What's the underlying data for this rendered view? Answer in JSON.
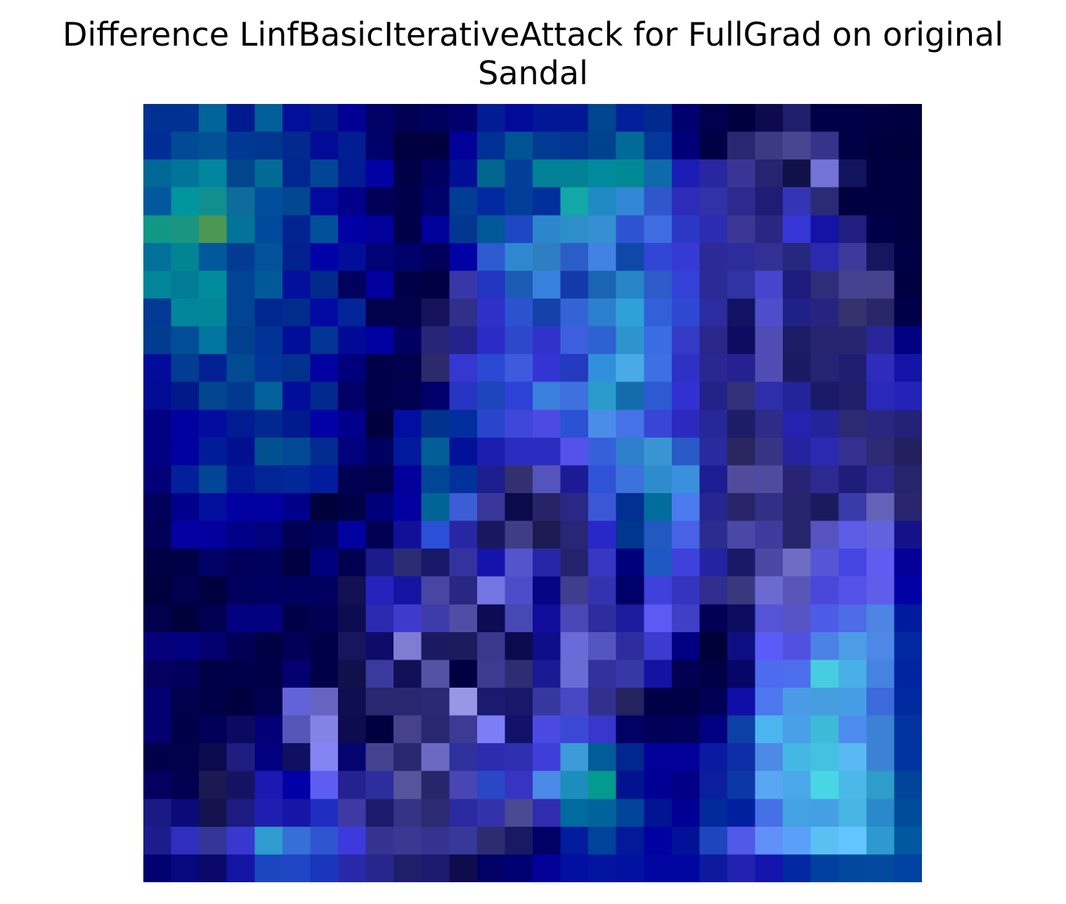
{
  "chart_data": {
    "type": "heatmap",
    "title_lines": [
      "Difference LinfBasicIterativeAttack for FullGrad on original",
      "Sandal"
    ],
    "axis": "off",
    "grid": false,
    "colorbar": false,
    "rows": 28,
    "cols": 28,
    "cells": [
      [
        "#013193",
        "#013193",
        "#01659B",
        "#011A90",
        "#015F9A",
        "#020F98",
        "#01198B",
        "#020094",
        "#000066",
        "#000054",
        "#00005D",
        "#00006D",
        "#011C95",
        "#010B9A",
        "#011896",
        "#011896",
        "#00458F",
        "#01209A",
        "#012A8E",
        "#000071",
        "#00004E",
        "#00003F",
        "#0D0A4E",
        "#1E1E6C",
        "#000047",
        "#000046",
        "#000043",
        "#000040"
      ],
      [
        "#012E96",
        "#014A96",
        "#015294",
        "#013894",
        "#013690",
        "#01298E",
        "#020B96",
        "#011D92",
        "#000069",
        "#00003E",
        "#000041",
        "#010199",
        "#013094",
        "#015493",
        "#013A92",
        "#013592",
        "#01428E",
        "#016B98",
        "#01389A",
        "#010079",
        "#000045",
        "#292770",
        "#3B3A82",
        "#484593",
        "#36348A",
        "#000044",
        "#00003F",
        "#00003D"
      ],
      [
        "#016796",
        "#01749A",
        "#02859E",
        "#01468D",
        "#016B95",
        "#012690",
        "#014696",
        "#011B93",
        "#0201A4",
        "#000049",
        "#000060",
        "#010F95",
        "#016690",
        "#013F9A",
        "#018195",
        "#018195",
        "#018A9D",
        "#018895",
        "#0F6AAA",
        "#1B1CB4",
        "#2827A1",
        "#3A3594",
        "#262471",
        "#111149",
        "#7273D6",
        "#12135D",
        "#000040",
        "#000040"
      ],
      [
        "#01589C",
        "#01959F",
        "#118F8E",
        "#0D6C9A",
        "#014E9C",
        "#014890",
        "#02099E",
        "#01008A",
        "#000059",
        "#00004A",
        "#000069",
        "#013D95",
        "#0129A0",
        "#013E9A",
        "#012F9C",
        "#13A7A8",
        "#1F8AC4",
        "#3288D5",
        "#3056CC",
        "#2C2CB8",
        "#3131A8",
        "#2C2A8E",
        "#1D1D76",
        "#3435B6",
        "#2B2A77",
        "#000040",
        "#000040",
        "#000040"
      ],
      [
        "#119885",
        "#1A9581",
        "#4A9852",
        "#037399",
        "#01499D",
        "#012490",
        "#01509A",
        "#0100A4",
        "#01009A",
        "#000049",
        "#00009A",
        "#013691",
        "#015898",
        "#1E47C3",
        "#2C86CD",
        "#2D8EC8",
        "#3590D2",
        "#2E53D2",
        "#3F6CE1",
        "#2B38C4",
        "#2C2CB0",
        "#3C3796",
        "#292782",
        "#3636D6",
        "#1413A6",
        "#201E7E",
        "#000048",
        "#000041"
      ],
      [
        "#01709B",
        "#018494",
        "#01599C",
        "#013C92",
        "#01529A",
        "#01218F",
        "#0101A8",
        "#010E99",
        "#000276",
        "#00006D",
        "#00005B",
        "#0201A4",
        "#2B5BCF",
        "#2F88CF",
        "#2E7EC2",
        "#2B5DC9",
        "#4282E0",
        "#0F48A8",
        "#3146D4",
        "#3639D4",
        "#2B2A96",
        "#2D2C9C",
        "#323193",
        "#26277F",
        "#2B2AAF",
        "#3C3B9B",
        "#16155F",
        "#000044"
      ],
      [
        "#018598",
        "#017C97",
        "#018C9D",
        "#014496",
        "#01599A",
        "#020F9A",
        "#012A8C",
        "#00005D",
        "#02009C",
        "#000049",
        "#000042",
        "#3837A8",
        "#2235C0",
        "#1D5BB6",
        "#3882DE",
        "#1439AB",
        "#1A64B4",
        "#2785C8",
        "#2D5BC9",
        "#3341D7",
        "#2C2A96",
        "#3133A4",
        "#4645CC",
        "#1D1C7E",
        "#2E2D79",
        "#45428F",
        "#45428F",
        "#000041"
      ],
      [
        "#013994",
        "#01859B",
        "#018798",
        "#014494",
        "#01268E",
        "#012B8C",
        "#0109A2",
        "#012598",
        "#00004D",
        "#00004B",
        "#15115A",
        "#302F8A",
        "#2E30C7",
        "#2B53D0",
        "#1542AA",
        "#3363D5",
        "#2C7ECF",
        "#30A0D9",
        "#3260D9",
        "#2E48D3",
        "#2C2B9F",
        "#121263",
        "#4F4DC9",
        "#202089",
        "#26247F",
        "#35326D",
        "#292769",
        "#000048"
      ],
      [
        "#013C91",
        "#014D98",
        "#01759E",
        "#01408F",
        "#013396",
        "#010E98",
        "#013493",
        "#010A97",
        "#0100A0",
        "#000063",
        "#272578",
        "#23238B",
        "#2B2BC7",
        "#2E48CC",
        "#3032CB",
        "#3D5FDE",
        "#2E61D2",
        "#2E94CE",
        "#3A6CE3",
        "#3439C6",
        "#292889",
        "#0D0C62",
        "#4F4DB4",
        "#1C1C66",
        "#272572",
        "#272570",
        "#28269A",
        "#010083"
      ],
      [
        "#010D9A",
        "#013D92",
        "#012094",
        "#014B93",
        "#013398",
        "#01308D",
        "#0100A0",
        "#00007B",
        "#00004A",
        "#00004C",
        "#2D2A6C",
        "#3636D1",
        "#2B49D4",
        "#3E5BDE",
        "#3434D2",
        "#243ABF",
        "#3090DB",
        "#4AAAE8",
        "#3C70E3",
        "#2F30C6",
        "#292791",
        "#232290",
        "#4F4DB4",
        "#1A1A62",
        "#242472",
        "#1E1D72",
        "#2F2CBA",
        "#1314A5"
      ],
      [
        "#020C93",
        "#01198A",
        "#01468E",
        "#013991",
        "#016198",
        "#020D9A",
        "#01298E",
        "#000066",
        "#00004A",
        "#000052",
        "#00006A",
        "#2834C2",
        "#1E45BC",
        "#2D42D6",
        "#3A7FDC",
        "#3F70E0",
        "#2B9BCC",
        "#146CAA",
        "#2D5AD2",
        "#3230D1",
        "#232288",
        "#323079",
        "#2E2EAB",
        "#24239A",
        "#1B1A68",
        "#211F6B",
        "#2A28BA",
        "#2323B8"
      ],
      [
        "#010083",
        "#0101A0",
        "#020D9E",
        "#011B91",
        "#01288F",
        "#011A8C",
        "#0101A5",
        "#01008B",
        "#00003D",
        "#010EA1",
        "#01328C",
        "#012E9F",
        "#2A45CA",
        "#3E47D9",
        "#4C4AE4",
        "#2A52D2",
        "#4B8CE9",
        "#4672E8",
        "#3945D6",
        "#2B29BE",
        "#272798",
        "#1D1C67",
        "#2D2C86",
        "#2622B0",
        "#24239A",
        "#2B2A73",
        "#292780",
        "#232278"
      ],
      [
        "#010082",
        "#0101A0",
        "#011C97",
        "#010F91",
        "#015190",
        "#014895",
        "#012B8F",
        "#01007D",
        "#000060",
        "#01199C",
        "#015E96",
        "#01119A",
        "#1B1DAF",
        "#2B2DC0",
        "#2B2DC0",
        "#5352EB",
        "#3660DA",
        "#2E7FCB",
        "#3895D1",
        "#2959C7",
        "#2A2A9E",
        "#29255F",
        "#373483",
        "#26239E",
        "#2A29B0",
        "#352F8F",
        "#2D2A73",
        "#22205E"
      ],
      [
        "#010079",
        "#01209A",
        "#014595",
        "#011896",
        "#012694",
        "#012898",
        "#011C9C",
        "#000052",
        "#00004C",
        "#01009B",
        "#014696",
        "#01319A",
        "#1E1E8E",
        "#33306F",
        "#5553BC",
        "#1C1B95",
        "#2F53D4",
        "#3D71DB",
        "#2F8CCC",
        "#3B90DD",
        "#1C1C93",
        "#4F4C9B",
        "#4F4B9E",
        "#262473",
        "#2C2A91",
        "#1E1D7A",
        "#2C2A8E",
        "#25246C"
      ],
      [
        "#00005C",
        "#00008C",
        "#020E9E",
        "#0100A0",
        "#0100A0",
        "#01008A",
        "#00003B",
        "#000046",
        "#00007A",
        "#01009F",
        "#016396",
        "#3C5DD6",
        "#383699",
        "#0B0A4A",
        "#262466",
        "#2A2885",
        "#3A58D6",
        "#012F92",
        "#016D9C",
        "#4B7BEF",
        "#272691",
        "#27246A",
        "#313087",
        "#27246C",
        "#1C1A5F",
        "#3A3AAA",
        "#6462B6",
        "#29266D"
      ],
      [
        "#000057",
        "#03019F",
        "#03009E",
        "#010089",
        "#01007D",
        "#000053",
        "#00005F",
        "#0101A0",
        "#000053",
        "#12109A",
        "#2B4FD6",
        "#2827A3",
        "#19185F",
        "#3E3D85",
        "#1C1A50",
        "#272677",
        "#2828C8",
        "#01368E",
        "#2159C1",
        "#4762E6",
        "#2C2B90",
        "#4A48A6",
        "#3E3B9C",
        "#26256B",
        "#5653C0",
        "#5C5CE6",
        "#6362DC",
        "#151289"
      ],
      [
        "#000044",
        "#000049",
        "#000067",
        "#00005B",
        "#00005D",
        "#000042",
        "#00007E",
        "#000053",
        "#1A1A8A",
        "#2B2C73",
        "#1A1969",
        "#34329E",
        "#1413AB",
        "#5454CC",
        "#2726A7",
        "#25236E",
        "#3737C4",
        "#01007C",
        "#1D58C3",
        "#3F41DC",
        "#2323A3",
        "#1A1968",
        "#4948A3",
        "#6E6CC3",
        "#5555D5",
        "#4545E2",
        "#5F5CEF",
        "#030198"
      ],
      [
        "#00003F",
        "#00004F",
        "#000040",
        "#00005E",
        "#000061",
        "#00005F",
        "#00005E",
        "#111052",
        "#2424BD",
        "#1414A3",
        "#4746A3",
        "#282781",
        "#7575E1",
        "#4E4DC9",
        "#050585",
        "#3F3D8E",
        "#3432AE",
        "#000069",
        "#3F41DC",
        "#3534BE",
        "#2F2E8E",
        "#39387D",
        "#6B6AD1",
        "#5856B8",
        "#4A48DC",
        "#5252E8",
        "#5F5DE9",
        "#0201A6"
      ],
      [
        "#00004D",
        "#00003C",
        "#000051",
        "#03007F",
        "#03007F",
        "#000049",
        "#000055",
        "#0E0C50",
        "#2B2AAF",
        "#3E3BCC",
        "#3E3BAA",
        "#4E4EA4",
        "#0C0B54",
        "#4848B4",
        "#0F0D99",
        "#4A48B8",
        "#2F2D9E",
        "#1C1B9E",
        "#5B5AF4",
        "#403FC8",
        "#020054",
        "#0C0C60",
        "#5553D6",
        "#5754C6",
        "#4D5CE6",
        "#4D6CE6",
        "#4E84E2",
        "#011B9E"
      ],
      [
        "#03007A",
        "#03007F",
        "#030070",
        "#000057",
        "#000044",
        "#000057",
        "#000049",
        "#16155E",
        "#0E0C68",
        "#7D7DD4",
        "#1B1A60",
        "#1C1B5E",
        "#3A388C",
        "#0C0A4F",
        "#0E0D8A",
        "#6A6AD8",
        "#5555C0",
        "#2F2D9E",
        "#3B3BD0",
        "#020082",
        "#000038",
        "#0E0E82",
        "#5B5BF8",
        "#5151E0",
        "#4C81E6",
        "#4C9DE6",
        "#4D88E7",
        "#0128A0"
      ],
      [
        "#030060",
        "#00005C",
        "#000046",
        "#00004A",
        "#000047",
        "#030072",
        "#000048",
        "#11104B",
        "#3A3A9E",
        "#111057",
        "#5353A3",
        "#000043",
        "#3C3B91",
        "#2E2D72",
        "#1A1A93",
        "#6B6BD4",
        "#33319C",
        "#3837A8",
        "#1313A3",
        "#020052",
        "#000044",
        "#060669",
        "#4C6BEF",
        "#4D6FEE",
        "#48CCE0",
        "#48AFE6",
        "#4682E0",
        "#0124A2"
      ],
      [
        "#030071",
        "#00004C",
        "#000048",
        "#000040",
        "#000050",
        "#6462D8",
        "#6664C0",
        "#0F0E52",
        "#29276F",
        "#292770",
        "#2B2975",
        "#9797E5",
        "#1B1A70",
        "#191868",
        "#3737A0",
        "#4848C4",
        "#32308E",
        "#24225F",
        "#000047",
        "#000046",
        "#000056",
        "#0F0EA6",
        "#4D77EE",
        "#4B9AE6",
        "#469DDE",
        "#469DE6",
        "#3C6ADA",
        "#0129A0"
      ],
      [
        "#030070",
        "#000048",
        "#000058",
        "#0A0A60",
        "#030077",
        "#5656B8",
        "#8383E6",
        "#0D0C4E",
        "#000041",
        "#45428A",
        "#29276F",
        "#3C3A93",
        "#7D7DF7",
        "#12116A",
        "#4A4AE2",
        "#3B48D4",
        "#3836CC",
        "#000065",
        "#000058",
        "#00005A",
        "#000080",
        "#0D40A6",
        "#4BB5EF",
        "#4AA0E8",
        "#3CBAD8",
        "#4D8BEE",
        "#3C82D4",
        "#0132A0"
      ],
      [
        "#00004A",
        "#00004C",
        "#0B0A4F",
        "#1E1D80",
        "#03007F",
        "#101060",
        "#8383F4",
        "#050470",
        "#45428F",
        "#29276F",
        "#6B6AC3",
        "#30309C",
        "#2D2CAF",
        "#2F2FB2",
        "#3E3EDA",
        "#3D9BD8",
        "#015C98",
        "#01268E",
        "#010098",
        "#02009B",
        "#0A1AA1",
        "#0D2EA6",
        "#4D8AE6",
        "#44B8E2",
        "#44C0E2",
        "#5AB8F2",
        "#3C82D4",
        "#0133A0"
      ],
      [
        "#030060",
        "#00004F",
        "#1B1951",
        "#151361",
        "#1A1AB2",
        "#0100A6",
        "#5D5DF2",
        "#232290",
        "#2D2D9E",
        "#56549B",
        "#28266A",
        "#4846B3",
        "#2947C7",
        "#3634C0",
        "#4B8AE6",
        "#1C8EBC",
        "#029B8E",
        "#01138E",
        "#010095",
        "#020085",
        "#0B1E9E",
        "#0C37A6",
        "#59A6F2",
        "#4AA8E8",
        "#47D7E4",
        "#4AB8E8",
        "#2E9DC9",
        "#01449A"
      ],
      [
        "#1A1A84",
        "#0B0A78",
        "#14124F",
        "#1C1B80",
        "#1E1EB0",
        "#1616A6",
        "#1E2DC0",
        "#3D3AA6",
        "#1C1B6B",
        "#353383",
        "#2C2A72",
        "#2C2AA0",
        "#3432A8",
        "#4A4A93",
        "#2F2CB0",
        "#016A9E",
        "#01629C",
        "#01449A",
        "#011491",
        "#010095",
        "#012A9A",
        "#0120A0",
        "#4670E6",
        "#44A2E2",
        "#44A0E2",
        "#47B6E4",
        "#2B88CB",
        "#014C9A"
      ],
      [
        "#1C1C8E",
        "#2E2EBF",
        "#353498",
        "#3838D0",
        "#2E9CCE",
        "#3570D6",
        "#2F56D0",
        "#3C3ADC",
        "#353390",
        "#3B3891",
        "#353390",
        "#383898",
        "#2E2C70",
        "#191865",
        "#000066",
        "#011C9C",
        "#01429A",
        "#01199A",
        "#0100A0",
        "#011298",
        "#1E44BE",
        "#5159E8",
        "#6190F8",
        "#5AA0F8",
        "#5AC0F4",
        "#63C4FF",
        "#2E99CE",
        "#0157A0"
      ],
      [
        "#030071",
        "#07077E",
        "#0A0969",
        "#1414A2",
        "#1C46C0",
        "#1E46C4",
        "#1A36BC",
        "#2828A8",
        "#27268C",
        "#1F1E6A",
        "#1B1A70",
        "#0E0C4D",
        "#010067",
        "#010072",
        "#030098",
        "#0110A0",
        "#0114A0",
        "#0112A0",
        "#0205A0",
        "#0105A0",
        "#0D1AA0",
        "#2222B0",
        "#1414AE",
        "#0128A0",
        "#01409E",
        "#01489E",
        "#014A9F",
        "#0141A0"
      ]
    ]
  }
}
